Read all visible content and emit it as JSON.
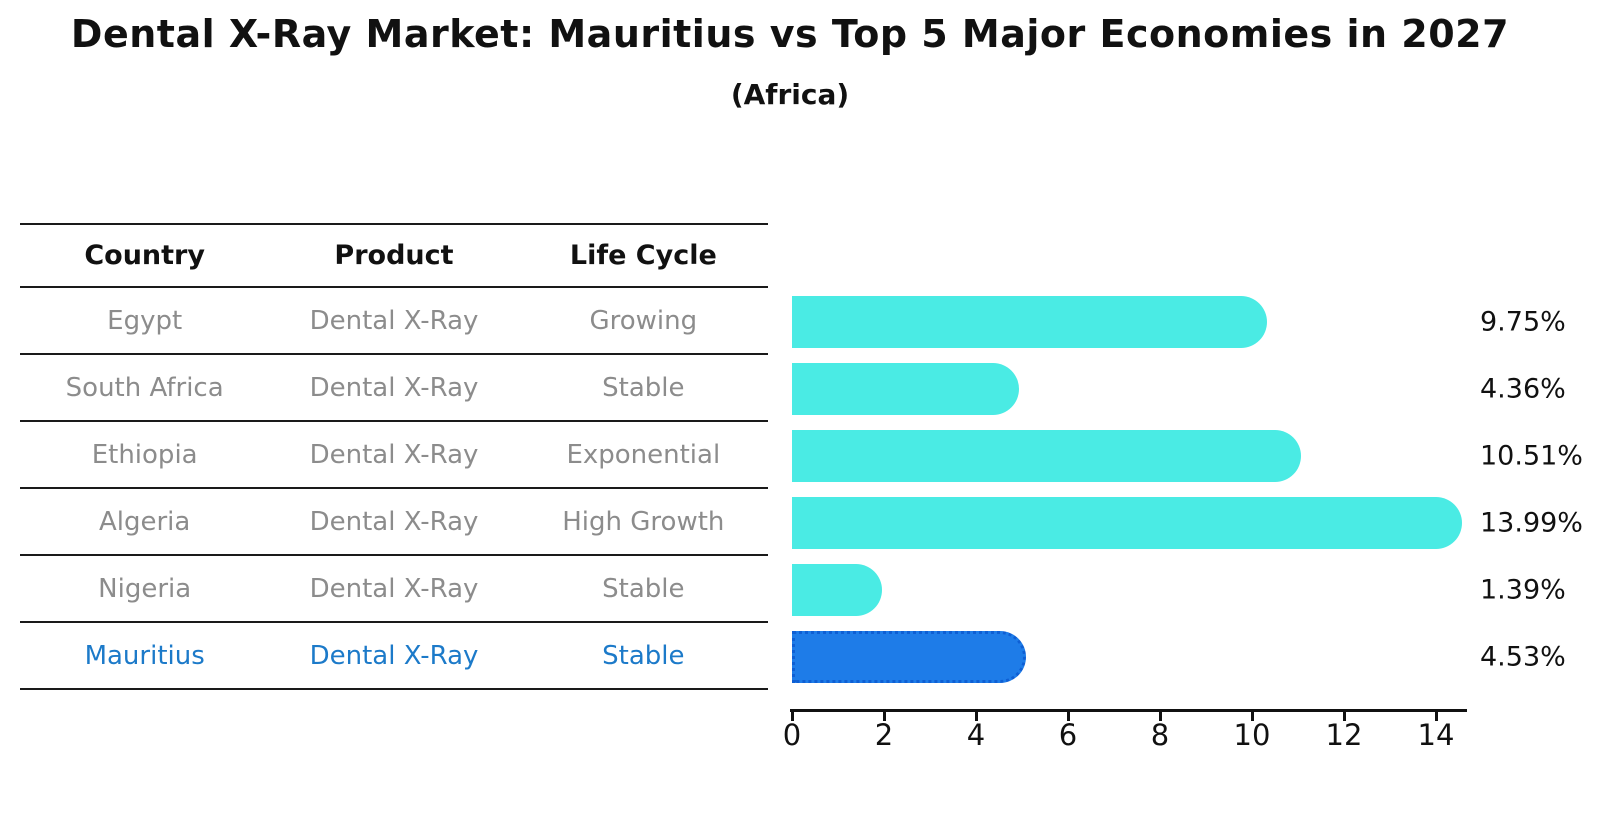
{
  "header": {
    "title": "Dental X-Ray Market: Mauritius vs Top 5 Major Economies in 2027",
    "subtitle": "(Africa)"
  },
  "table": {
    "columns": [
      "Country",
      "Product",
      "Life Cycle"
    ],
    "rows": [
      {
        "country": "Egypt",
        "product": "Dental X-Ray",
        "life_cycle": "Growing",
        "highlight": false
      },
      {
        "country": "South Africa",
        "product": "Dental X-Ray",
        "life_cycle": "Stable",
        "highlight": false
      },
      {
        "country": "Ethiopia",
        "product": "Dental X-Ray",
        "life_cycle": "Exponential",
        "highlight": false
      },
      {
        "country": "Algeria",
        "product": "Dental X-Ray",
        "life_cycle": "High Growth",
        "highlight": false
      },
      {
        "country": "Nigeria",
        "product": "Dental X-Ray",
        "life_cycle": "Stable",
        "highlight": false
      },
      {
        "country": "Mauritius",
        "product": "Dental X-Ray",
        "life_cycle": "Stable",
        "highlight": true
      }
    ]
  },
  "chart_data": {
    "type": "bar",
    "orientation": "horizontal",
    "title": "Dental X-Ray Market: Mauritius vs Top 5 Major Economies in 2027",
    "subtitle": "(Africa)",
    "categories": [
      "Egypt",
      "South Africa",
      "Ethiopia",
      "Algeria",
      "Nigeria",
      "Mauritius"
    ],
    "values": [
      9.75,
      4.36,
      10.51,
      13.99,
      1.39,
      4.53
    ],
    "value_labels": [
      "9.75%",
      "4.36%",
      "10.51%",
      "13.99%",
      "1.39%",
      "4.53%"
    ],
    "xlabel": "",
    "ylabel": "",
    "xlim": [
      0,
      14.6
    ],
    "xticks": [
      0,
      2,
      4,
      6,
      8,
      10,
      12,
      14
    ],
    "grid": false,
    "legend": "none",
    "bar_color": "#4AEBE4",
    "highlight_index": 5,
    "highlight_bar_color": "#1E7CE8",
    "highlight_border_color": "#0E5FD4",
    "highlight_text_color": "#1C7AC9",
    "cell_text_color": "#8C8C8C",
    "label_text_color": "#111111"
  }
}
